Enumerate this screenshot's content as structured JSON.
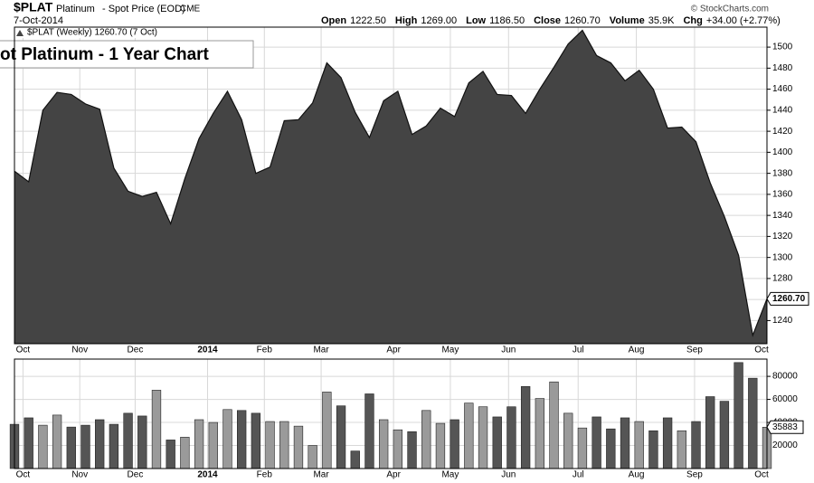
{
  "header": {
    "symbol": "$PLAT",
    "name": "Platinum",
    "description": "- Spot Price (EOD)",
    "exchange": "CME",
    "date": "7-Oct-2014",
    "stats": [
      {
        "label": "Open",
        "value": "1222.50"
      },
      {
        "label": "High",
        "value": "1269.00"
      },
      {
        "label": "Low",
        "value": "1186.50"
      },
      {
        "label": "Close",
        "value": "1260.70"
      },
      {
        "label": "Volume",
        "value": "35.9K"
      },
      {
        "label": "Chg",
        "value": "+34.00 (+2.77%)"
      }
    ],
    "credit": "© StockCharts.com"
  },
  "chart_data": [
    {
      "type": "area",
      "title": "ot Platinum - 1 Year Chart",
      "legend": "$PLAT (Weekly) 1260.70 (7 Oct)",
      "series": [
        {
          "name": "$PLAT",
          "color": "#444444",
          "values": [
            1382,
            1372,
            1440,
            1457,
            1455,
            1446,
            1441,
            1385,
            1363,
            1358,
            1362,
            1332,
            1375,
            1413,
            1437,
            1458,
            1431,
            1380,
            1386,
            1430,
            1431,
            1447,
            1485,
            1471,
            1438,
            1414,
            1449,
            1458,
            1417,
            1425,
            1442,
            1434,
            1466,
            1477,
            1455,
            1454,
            1437,
            1460,
            1481,
            1503,
            1516,
            1492,
            1485,
            1468,
            1478,
            1460,
            1423,
            1424,
            1410,
            1371,
            1339,
            1302,
            1226,
            1260.7
          ],
          "value_labels": [
            null,
            null,
            null,
            null,
            null,
            null,
            null,
            null,
            null,
            null,
            null,
            null,
            null,
            null,
            null,
            null,
            null,
            null,
            null,
            null,
            null,
            null,
            null,
            null,
            null,
            null,
            null,
            null,
            null,
            null,
            null,
            null,
            null,
            null,
            null,
            null,
            null,
            null,
            null,
            null,
            null,
            null,
            null,
            null,
            null,
            null,
            null,
            null,
            null,
            null,
            null,
            null,
            null,
            "1260.70"
          ]
        }
      ],
      "xlim": [
        0,
        53
      ],
      "xticks": [
        {
          "value": 0.6,
          "label": "Oct"
        },
        {
          "value": 4.6,
          "label": "Nov"
        },
        {
          "value": 8.5,
          "label": "Dec"
        },
        {
          "value": 13.6,
          "label": "2014"
        },
        {
          "value": 17.6,
          "label": "Feb"
        },
        {
          "value": 21.6,
          "label": "Mar"
        },
        {
          "value": 26.7,
          "label": "Apr"
        },
        {
          "value": 30.7,
          "label": "May"
        },
        {
          "value": 34.8,
          "label": "Jun"
        },
        {
          "value": 39.7,
          "label": "Jul"
        },
        {
          "value": 43.8,
          "label": "Aug"
        },
        {
          "value": 47.9,
          "label": "Sep"
        },
        {
          "value": 53,
          "label": "Oct"
        }
      ],
      "ylim": [
        1218,
        1519
      ],
      "yticks": [
        1240,
        1260,
        1280,
        1300,
        1320,
        1340,
        1360,
        1380,
        1400,
        1420,
        1440,
        1460,
        1480,
        1500
      ],
      "grid": true
    },
    {
      "type": "bar",
      "series": [
        {
          "name": "Volume",
          "up_color": "#9a9a9a",
          "down_color": "#555555",
          "values": [
            38400,
            44000,
            37600,
            46400,
            36000,
            37600,
            42400,
            38400,
            48000,
            45600,
            68000,
            24800,
            27200,
            42400,
            40000,
            51200,
            50400,
            48000,
            40800,
            40800,
            36800,
            20000,
            66400,
            54400,
            15200,
            64800,
            42400,
            33600,
            32000,
            50400,
            39200,
            42400,
            56800,
            53600,
            44800,
            53600,
            71200,
            60800,
            75200,
            48000,
            35200,
            44800,
            34400,
            44000,
            40800,
            32800,
            44000,
            32800,
            40800,
            62400,
            58400,
            92000,
            78400,
            35883
          ]
        }
      ],
      "xlim": [
        0,
        53
      ],
      "xticks": [
        {
          "value": 0.6,
          "label": "Oct"
        },
        {
          "value": 4.6,
          "label": "Nov"
        },
        {
          "value": 8.5,
          "label": "Dec"
        },
        {
          "value": 13.6,
          "label": "2014"
        },
        {
          "value": 17.6,
          "label": "Feb"
        },
        {
          "value": 21.6,
          "label": "Mar"
        },
        {
          "value": 26.7,
          "label": "Apr"
        },
        {
          "value": 30.7,
          "label": "May"
        },
        {
          "value": 34.8,
          "label": "Jun"
        },
        {
          "value": 39.7,
          "label": "Jul"
        },
        {
          "value": 43.8,
          "label": "Aug"
        },
        {
          "value": 47.9,
          "label": "Sep"
        },
        {
          "value": 53,
          "label": "Oct"
        }
      ],
      "ylim": [
        0,
        95000
      ],
      "yticks": [
        20000,
        40000,
        60000,
        80000
      ],
      "grid": true
    }
  ]
}
